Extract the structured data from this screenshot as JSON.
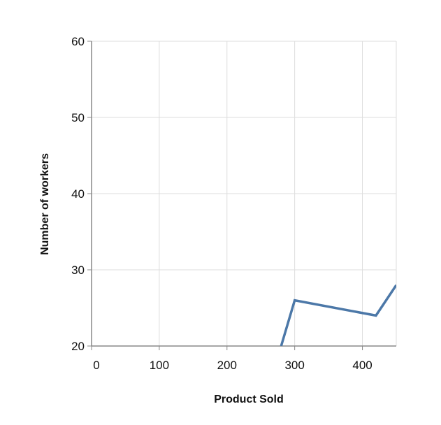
{
  "chart_data": {
    "type": "line",
    "title": "",
    "xlabel": "Product Sold",
    "ylabel": "Number of workers",
    "xlim": [
      0,
      450
    ],
    "ylim": [
      20,
      60
    ],
    "x_ticks": [
      0,
      100,
      200,
      300,
      400
    ],
    "x_tick_labels": [
      "0",
      "100",
      "200",
      "300",
      "400"
    ],
    "y_ticks": [
      20,
      30,
      40,
      50,
      60
    ],
    "y_tick_labels": [
      "20",
      "30",
      "40",
      "50",
      "60"
    ],
    "grid": true,
    "series": [
      {
        "color": "#4c78a8",
        "x": [
          280,
          300,
          420,
          450
        ],
        "y": [
          20,
          26,
          24,
          28
        ]
      }
    ]
  }
}
